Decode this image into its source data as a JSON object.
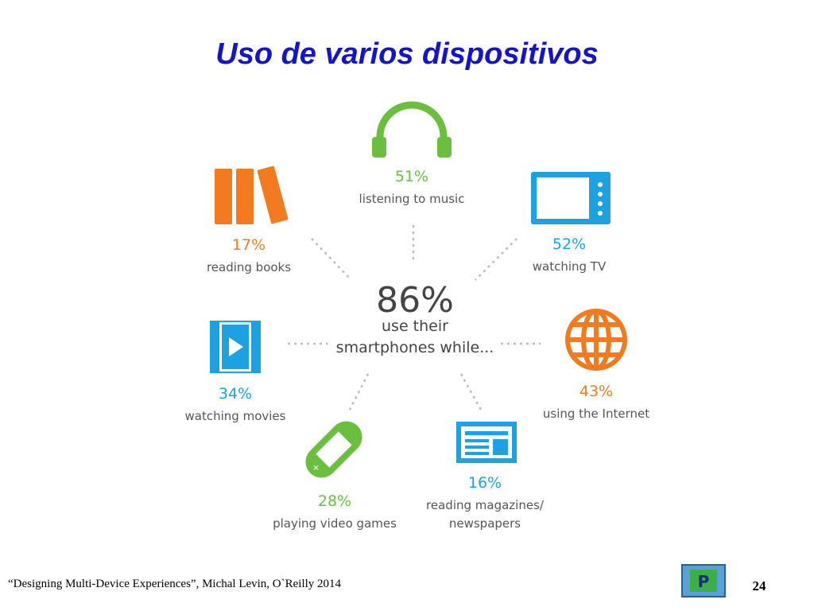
{
  "title": "Uso de varios dispositivos",
  "center": {
    "value": "86%",
    "lines": [
      "use their",
      "smartphones while..."
    ]
  },
  "items": [
    {
      "percent": "51%",
      "lines": [
        "listening to music"
      ]
    },
    {
      "percent": "52%",
      "lines": [
        "watching TV"
      ]
    },
    {
      "percent": "43%",
      "lines": [
        "using the Internet"
      ]
    },
    {
      "percent": "16%",
      "lines": [
        "reading magazines/",
        "newspapers"
      ]
    },
    {
      "percent": "28%",
      "lines": [
        "playing video games"
      ]
    },
    {
      "percent": "34%",
      "lines": [
        "watching movies"
      ]
    },
    {
      "percent": "17%",
      "lines": [
        "reading books"
      ]
    }
  ],
  "footer": {
    "citation": "“Designing Multi-Device Experiences”, Michal Levin, O`Reilly 2014",
    "page": "24"
  }
}
